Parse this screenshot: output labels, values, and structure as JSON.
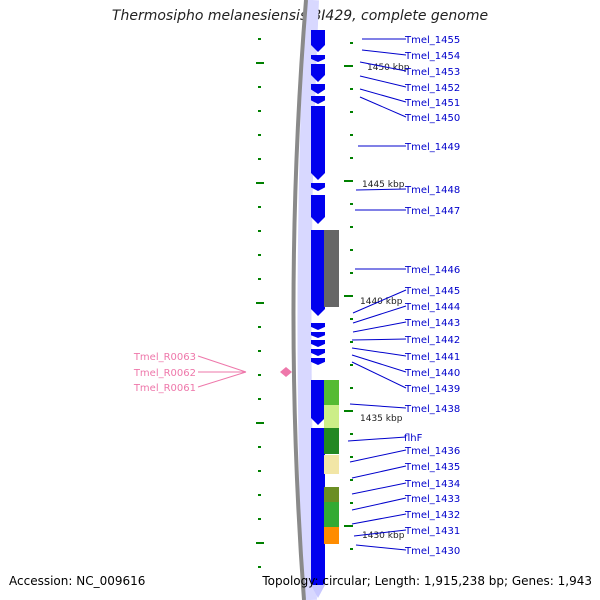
{
  "title": "Thermosipho melanesiensis BI429, complete genome",
  "footer": {
    "accession": "Accession: NC_009616",
    "summary": "Topology: circular; Length: 1,915,238 bp; Genes: 1,943"
  },
  "colors": {
    "cds": "#0000ee",
    "cds_light": "#c8c8ff",
    "backbone": "#808080",
    "tick": "#008000",
    "gene_label": "#0000cc",
    "rna_label": "#ee77aa",
    "rna": "#ee77aa"
  },
  "kbp_labels": [
    "1450 kbp",
    "1445 kbp",
    "1440 kbp",
    "1435 kbp",
    "1430 kbp"
  ],
  "genes": [
    {
      "label": "Tmel_1455"
    },
    {
      "label": "Tmel_1454"
    },
    {
      "label": "Tmel_1453"
    },
    {
      "label": "Tmel_1452"
    },
    {
      "label": "Tmel_1451"
    },
    {
      "label": "Tmel_1450"
    },
    {
      "label": "Tmel_1449"
    },
    {
      "label": "Tmel_1448"
    },
    {
      "label": "Tmel_1447"
    },
    {
      "label": "Tmel_1446"
    },
    {
      "label": "Tmel_1445"
    },
    {
      "label": "Tmel_1444"
    },
    {
      "label": "Tmel_1443"
    },
    {
      "label": "Tmel_1442"
    },
    {
      "label": "Tmel_1441"
    },
    {
      "label": "Tmel_1440"
    },
    {
      "label": "Tmel_1439"
    },
    {
      "label": "Tmel_1438"
    },
    {
      "label": "flhF"
    },
    {
      "label": "Tmel_1436"
    },
    {
      "label": "Tmel_1435"
    },
    {
      "label": "Tmel_1434"
    },
    {
      "label": "Tmel_1433"
    },
    {
      "label": "Tmel_1432"
    },
    {
      "label": "Tmel_1431"
    },
    {
      "label": "Tmel_1430"
    }
  ],
  "rnas": [
    {
      "label": "Tmel_R0063"
    },
    {
      "label": "Tmel_R0062"
    },
    {
      "label": "Tmel_R0061"
    }
  ]
}
